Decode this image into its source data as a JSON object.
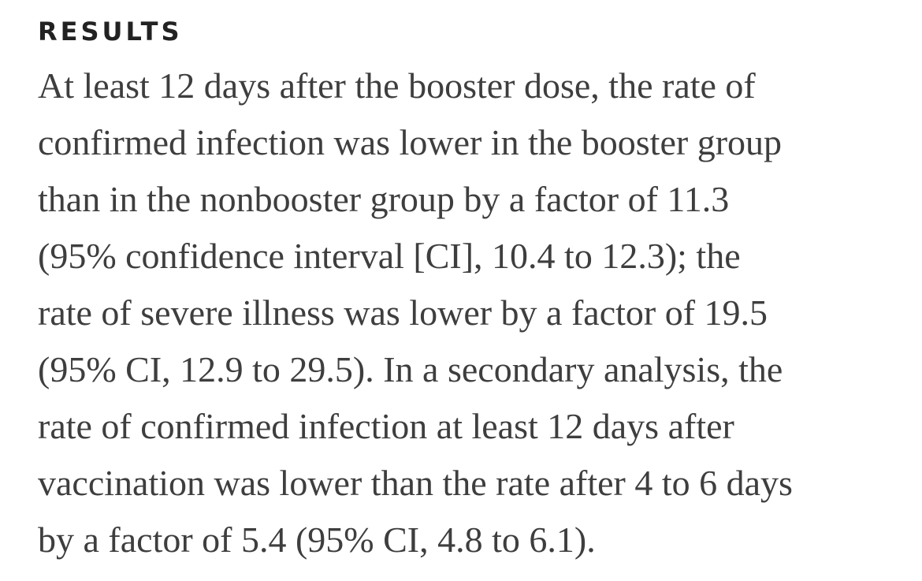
{
  "section": {
    "heading": "RESULTS",
    "lines": [
      "At least 12 days after the booster dose, the rate of",
      "confirmed infection was lower in the booster group",
      "than in the nonbooster group by a factor of 11.3",
      "(95% confidence interval [CI], 10.4 to 12.3); the",
      "rate of severe illness was lower by a factor of 19.5",
      "(95% CI, 12.9 to 29.5). In a secondary analysis, the",
      "rate of confirmed infection at least 12 days after",
      "vaccination was lower than the rate after 4 to 6 days",
      "by a factor of 5.4 (95% CI, 4.8 to 6.1)."
    ]
  }
}
